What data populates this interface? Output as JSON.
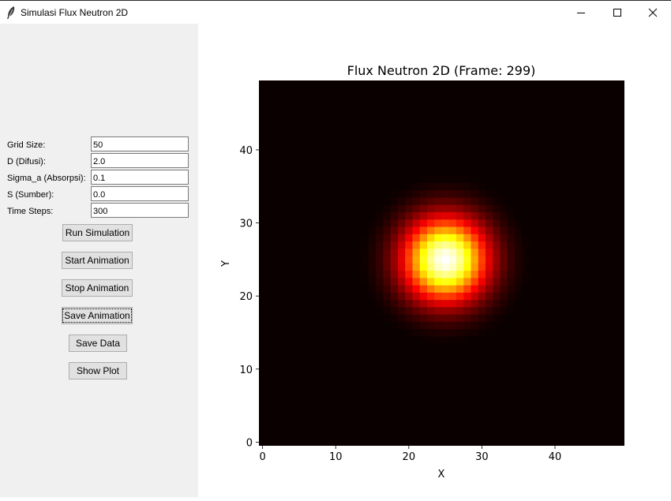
{
  "window": {
    "title": "Simulasi Flux Neutron 2D",
    "icon": "feather-icon",
    "controls": [
      "minimize-icon",
      "maximize-icon",
      "close-icon"
    ]
  },
  "params": [
    {
      "label": "Grid Size:",
      "value": "50"
    },
    {
      "label": "D (Difusi):",
      "value": "2.0"
    },
    {
      "label": "Sigma_a (Absorpsi):",
      "value": "0.1"
    },
    {
      "label": "S (Sumber):",
      "value": "0.0"
    },
    {
      "label": "Time Steps:",
      "value": "300"
    }
  ],
  "buttons": {
    "run": "Run Simulation",
    "start": "Start Animation",
    "stop": "Stop Animation",
    "save_anim": "Save Animation",
    "save_data": "Save Data",
    "show_plot": "Show Plot"
  },
  "chart_data": {
    "type": "heatmap",
    "title": "Flux Neutron 2D (Frame: 299)",
    "xlabel": "X",
    "ylabel": "Y",
    "xlim": [
      -0.5,
      49.5
    ],
    "ylim": [
      -0.5,
      49.5
    ],
    "xticks": [
      0,
      10,
      20,
      30,
      40
    ],
    "yticks": [
      0,
      10,
      20,
      30,
      40
    ],
    "grid_size": 50,
    "peak_center": [
      25,
      25
    ],
    "peak_spread_sigma": 4,
    "colormap": "hot",
    "origin": "lower"
  }
}
